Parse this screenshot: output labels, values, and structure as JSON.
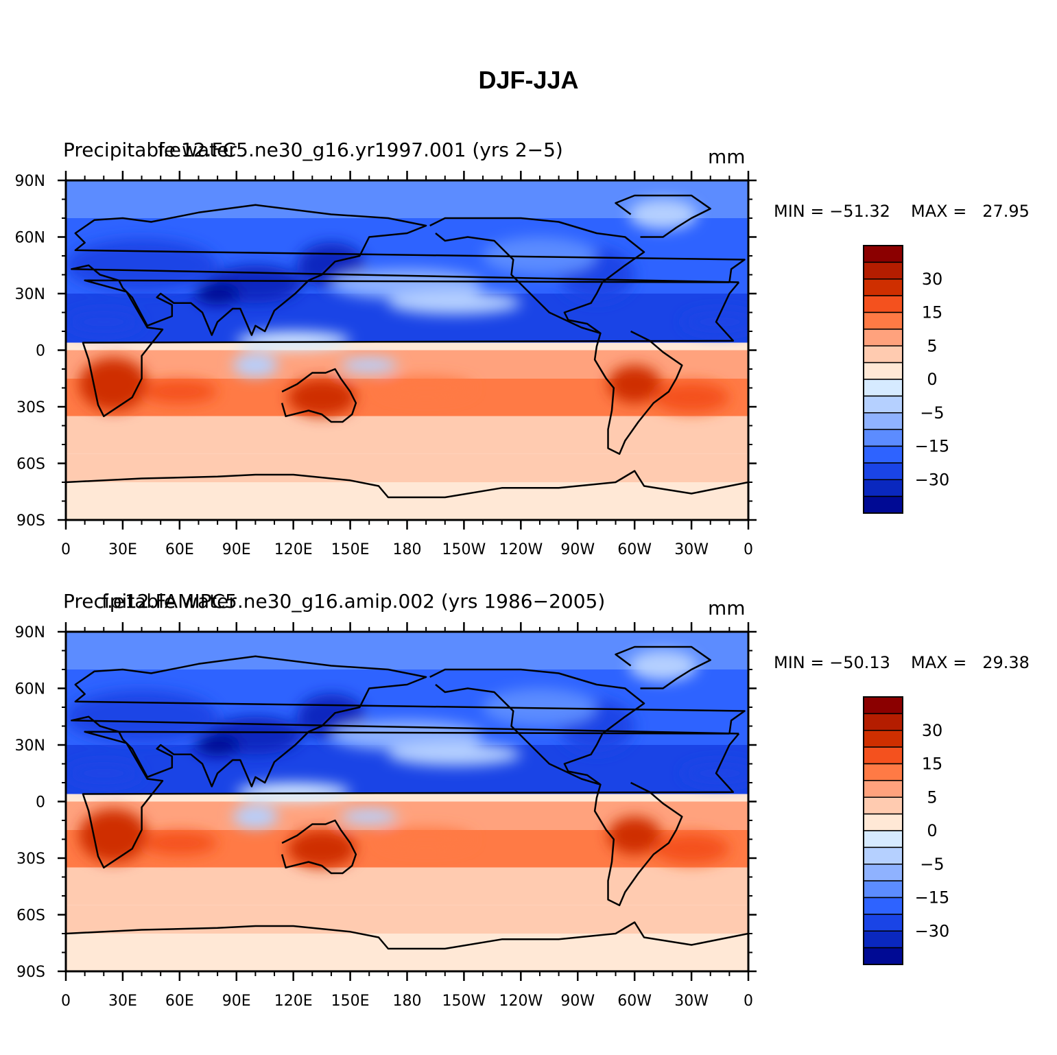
{
  "title": "DJF-JJA",
  "panels": [
    {
      "left_label_a": "Precipitable water",
      "left_label_b": "f.e12.FC5.ne30_g16.yr1997.001 (yrs 2−5)",
      "units": "mm",
      "min_label": "MIN = −51.32",
      "max_label": "MAX =   27.95"
    },
    {
      "left_label_a": "Precipitable water",
      "left_label_b": "f.e12.FAMIPC5.ne30_g16.amip.002 (yrs 1986−2005)",
      "units": "mm",
      "min_label": "MIN = −50.13",
      "max_label": "MAX =   29.38"
    }
  ],
  "lat_ticks": [
    "90N",
    "60N",
    "30N",
    "0",
    "30S",
    "60S",
    "90S"
  ],
  "lon_ticks": [
    "0",
    "30E",
    "60E",
    "90E",
    "120E",
    "150E",
    "180",
    "150W",
    "120W",
    "90W",
    "60W",
    "30W",
    "0"
  ],
  "colorbar": {
    "colors": [
      "#8b0000",
      "#b41d00",
      "#cf2f00",
      "#f4511e",
      "#ff7a45",
      "#ffa27d",
      "#ffcbb0",
      "#ffe8d6",
      "#d6eaff",
      "#b5d0ff",
      "#8fb2ff",
      "#5c8cff",
      "#2e63ff",
      "#1a44e6",
      "#0a28bf",
      "#000a94"
    ],
    "labels": [
      "30",
      "15",
      "5",
      "0",
      "−5",
      "−15",
      "−30"
    ]
  }
}
